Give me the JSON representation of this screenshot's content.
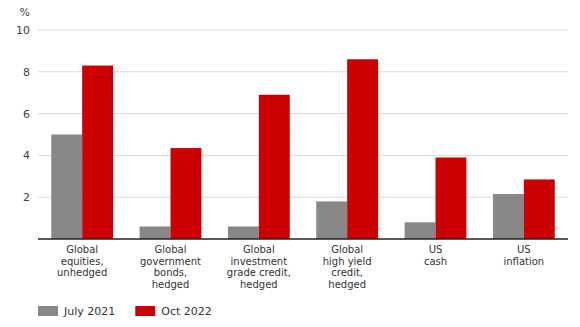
{
  "chart_data": {
    "type": "bar",
    "categories": [
      "Global\nequities,\nunhedged",
      "Global\ngovernment\nbonds,\nhedged",
      "Global\ninvestment\ngrade credit,\nhedged",
      "Global\nhigh yield\ncredit,\nhedged",
      "US\ncash",
      "US\ninflation"
    ],
    "series": [
      {
        "name": "July 2021",
        "color": "#888888",
        "values": [
          5.0,
          0.6,
          0.6,
          1.8,
          0.8,
          2.15
        ]
      },
      {
        "name": "Oct 2022",
        "color": "#cc0000",
        "values": [
          8.3,
          4.35,
          6.9,
          8.6,
          3.9,
          2.85
        ]
      }
    ],
    "y_label": "%",
    "ylim": [
      0,
      10
    ],
    "yticks": [
      2,
      4,
      6,
      8,
      10
    ],
    "grid": true,
    "legend": "bottom"
  }
}
